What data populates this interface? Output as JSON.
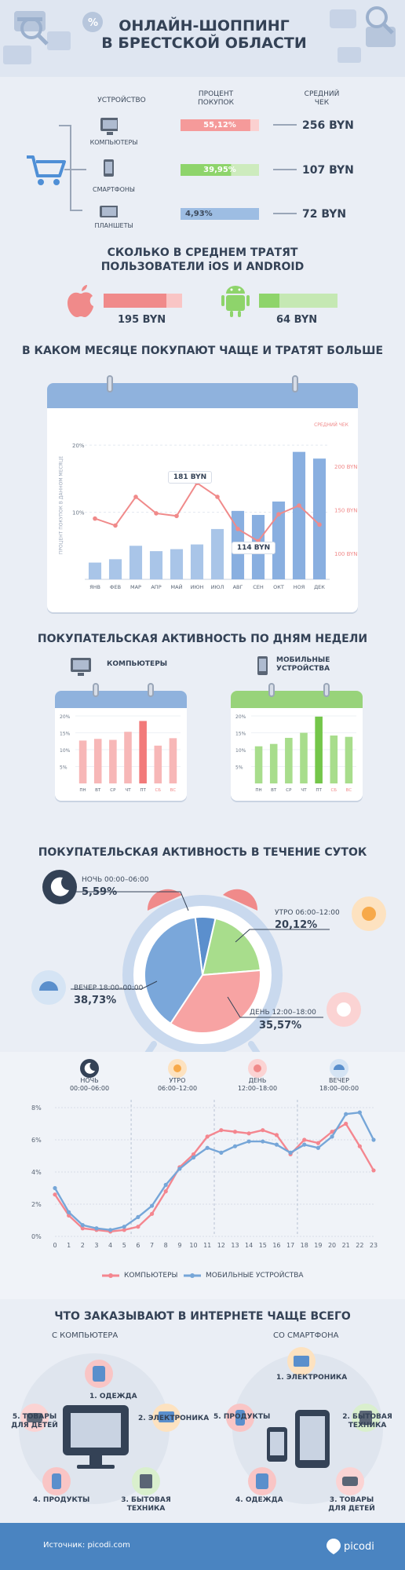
{
  "header": {
    "title_line1": "ОНЛАЙН-ШОППИНГ",
    "title_line2": "В БРЕСТСКОЙ ОБЛАСТИ"
  },
  "devices": {
    "col_device": "УСТРОЙСТВО",
    "col_percent": "ПРОЦЕНТ ПОКУПОК",
    "col_check": "СРЕДНИЙ ЧЕК",
    "rows": [
      {
        "label": "КОМПЬЮТЕРЫ",
        "percent": 55.12,
        "percent_text": "55,12%",
        "check": "256 BYN",
        "color": "#f59a9a"
      },
      {
        "label": "СМАРТФОНЫ",
        "percent": 39.95,
        "percent_text": "39,95%",
        "check": "107 BYN",
        "color": "#8ed46b"
      },
      {
        "label": "ПЛАНШЕТЫ",
        "percent": 4.93,
        "percent_text": "4,93%",
        "check": "72 BYN",
        "color": "#9dbde3"
      }
    ]
  },
  "os": {
    "title_line1": "СКОЛЬКО В СРЕДНЕМ ТРАТЯТ",
    "title_line2": "ПОЛЬЗОВАТЕЛИ iOS И ANDROID",
    "ios": {
      "value": "195 BYN",
      "amount": 195
    },
    "android": {
      "value": "64 BYN",
      "amount": 64
    }
  },
  "monthly": {
    "title": "В КАКОМ МЕСЯЦЕ ПОКУПАЮТ ЧАЩЕ И ТРАТЯТ БОЛЬШЕ",
    "right_axis_title": "СРЕДНИЙ ЧЕК",
    "left_axis_title": "ПРОЦЕНТ ПОКУПОК В ДАННОМ МЕСЯЦЕ",
    "callout_max": "181 BYN",
    "callout_min": "114 BYN"
  },
  "weekdays": {
    "title": "ПОКУПАТЕЛЬСКАЯ АКТИВНОСТЬ ПО ДНЯМ НЕДЕЛИ",
    "computers_label": "КОМПЬЮТЕРЫ",
    "mobile_label_1": "МОБИЛЬНЫЕ",
    "mobile_label_2": "УСТРОЙСТВА"
  },
  "daytime": {
    "title": "ПОКУПАТЕЛЬСКАЯ АКТИВНОСТЬ В ТЕЧЕНИЕ СУТОК",
    "night_label": "НОЧЬ 00:00–06:00",
    "night_value": "5,59%",
    "morning_label": "УТРО 06:00–12:00",
    "morning_value": "20,12%",
    "evening_label": "ВЕЧЕР 18:00–00:00",
    "evening_value": "38,73%",
    "day_label": "ДЕНЬ 12:00–18:00",
    "day_value": "35,57%"
  },
  "hourly": {
    "period_night": "НОЧЬ",
    "time_night": "00:00–06:00",
    "period_morning": "УТРО",
    "time_morning": "06:00–12:00",
    "period_day": "ДЕНЬ",
    "time_day": "12:00–18:00",
    "period_evening": "ВЕЧЕР",
    "time_evening": "18:00–00:00",
    "legend_computers": "КОМПЬЮТЕРЫ",
    "legend_mobile": "МОБИЛЬНЫЕ УСТРОЙСТВА"
  },
  "orders": {
    "title": "ЧТО ЗАКАЗЫВАЮТ В ИНТЕРНЕТЕ ЧАЩЕ ВСЕГО",
    "computer_head": "С КОМПЬЮТЕРА",
    "phone_head": "СО СМАРТФОНА",
    "computer_items": [
      "1. ОДЕЖДА",
      "2. ЭЛЕКТРОНИКА",
      "3. БЫТОВАЯ ТЕХНИКА",
      "4. ПРОДУКТЫ",
      "5. ТОВАРЫ ДЛЯ ДЕТЕЙ"
    ],
    "phone_items": [
      "1. ЭЛЕКТРОНИКА",
      "2. БЫТОВАЯ ТЕХНИКА",
      "3. ТОВАРЫ ДЛЯ ДЕТЕЙ",
      "4. ОДЕЖДА",
      "5. ПРОДУКТЫ"
    ]
  },
  "footer": {
    "source": "Источник: picodi.com",
    "logo": "picodi"
  },
  "chart_data": [
    {
      "type": "bar",
      "name": "monthly",
      "categories": [
        "ЯНВ",
        "ФЕВ",
        "МАР",
        "АПР",
        "МАЙ",
        "ИЮН",
        "ИЮЛ",
        "АВГ",
        "СЕН",
        "ОКТ",
        "НОЯ",
        "ДЕК"
      ],
      "y_ticks": [
        "10%",
        "20%"
      ],
      "ylim": [
        0,
        22
      ],
      "series": [
        {
          "values": [
            2.5,
            3.0,
            5.0,
            4.2,
            4.5,
            5.2,
            7.5,
            10.2,
            9.6,
            11.6,
            19.0,
            18.0
          ]
        }
      ],
      "line": {
        "values": [
          140,
          132,
          165,
          146,
          143,
          181,
          165,
          128,
          114,
          145,
          155,
          133
        ]
      },
      "y2_ticks": [
        "100 BYN",
        "150 BYN",
        "200 BYN"
      ],
      "y2lim": [
        70,
        240
      ]
    },
    {
      "type": "bar",
      "name": "weekday_computers",
      "categories": [
        "ПН",
        "ВТ",
        "СР",
        "ЧТ",
        "ПТ",
        "СБ",
        "ВС"
      ],
      "y_ticks": [
        "5%",
        "10%",
        "15%",
        "20%"
      ],
      "ylim": [
        0,
        20
      ],
      "series": [
        {
          "values": [
            12.7,
            13.2,
            12.9,
            15.3,
            18.5,
            11.2,
            13.4
          ]
        }
      ]
    },
    {
      "type": "bar",
      "name": "weekday_mobile",
      "categories": [
        "ПН",
        "ВТ",
        "СР",
        "ЧТ",
        "ПТ",
        "СБ",
        "ВС"
      ],
      "y_ticks": [
        "5%",
        "10%",
        "15%",
        "20%"
      ],
      "ylim": [
        0,
        20
      ],
      "series": [
        {
          "values": [
            11.0,
            11.7,
            13.5,
            15.0,
            19.8,
            14.2,
            13.8
          ]
        }
      ]
    },
    {
      "type": "pie",
      "name": "daytime",
      "labels": [
        "НОЧЬ 00:00–06:00",
        "УТРО 06:00–12:00",
        "ДЕНЬ 12:00–18:00",
        "ВЕЧЕР 18:00–00:00"
      ],
      "values": [
        5.59,
        20.12,
        35.57,
        38.73
      ]
    },
    {
      "type": "line",
      "name": "hourly",
      "x": [
        0,
        1,
        2,
        3,
        4,
        5,
        6,
        7,
        8,
        9,
        10,
        11,
        12,
        13,
        14,
        15,
        16,
        17,
        18,
        19,
        20,
        21,
        22,
        23
      ],
      "y_ticks": [
        "0%",
        "2%",
        "4%",
        "6%",
        "8%"
      ],
      "ylim": [
        0,
        8
      ],
      "series": [
        {
          "name": "КОМПЬЮТЕРЫ",
          "color": "#f4868f",
          "values": [
            2.6,
            1.3,
            0.5,
            0.4,
            0.3,
            0.4,
            0.6,
            1.4,
            2.8,
            4.3,
            5.1,
            6.2,
            6.6,
            6.5,
            6.4,
            6.6,
            6.3,
            5.1,
            6.0,
            5.8,
            6.5,
            7.0,
            5.6,
            4.1
          ]
        },
        {
          "name": "МОБИЛЬНЫЕ УСТРОЙСТВА",
          "color": "#76a6d8",
          "values": [
            3.0,
            1.5,
            0.7,
            0.5,
            0.4,
            0.6,
            1.2,
            1.9,
            3.2,
            4.2,
            4.9,
            5.5,
            5.2,
            5.6,
            5.9,
            5.9,
            5.7,
            5.2,
            5.7,
            5.5,
            6.2,
            7.6,
            7.7,
            6.0
          ]
        }
      ]
    }
  ]
}
